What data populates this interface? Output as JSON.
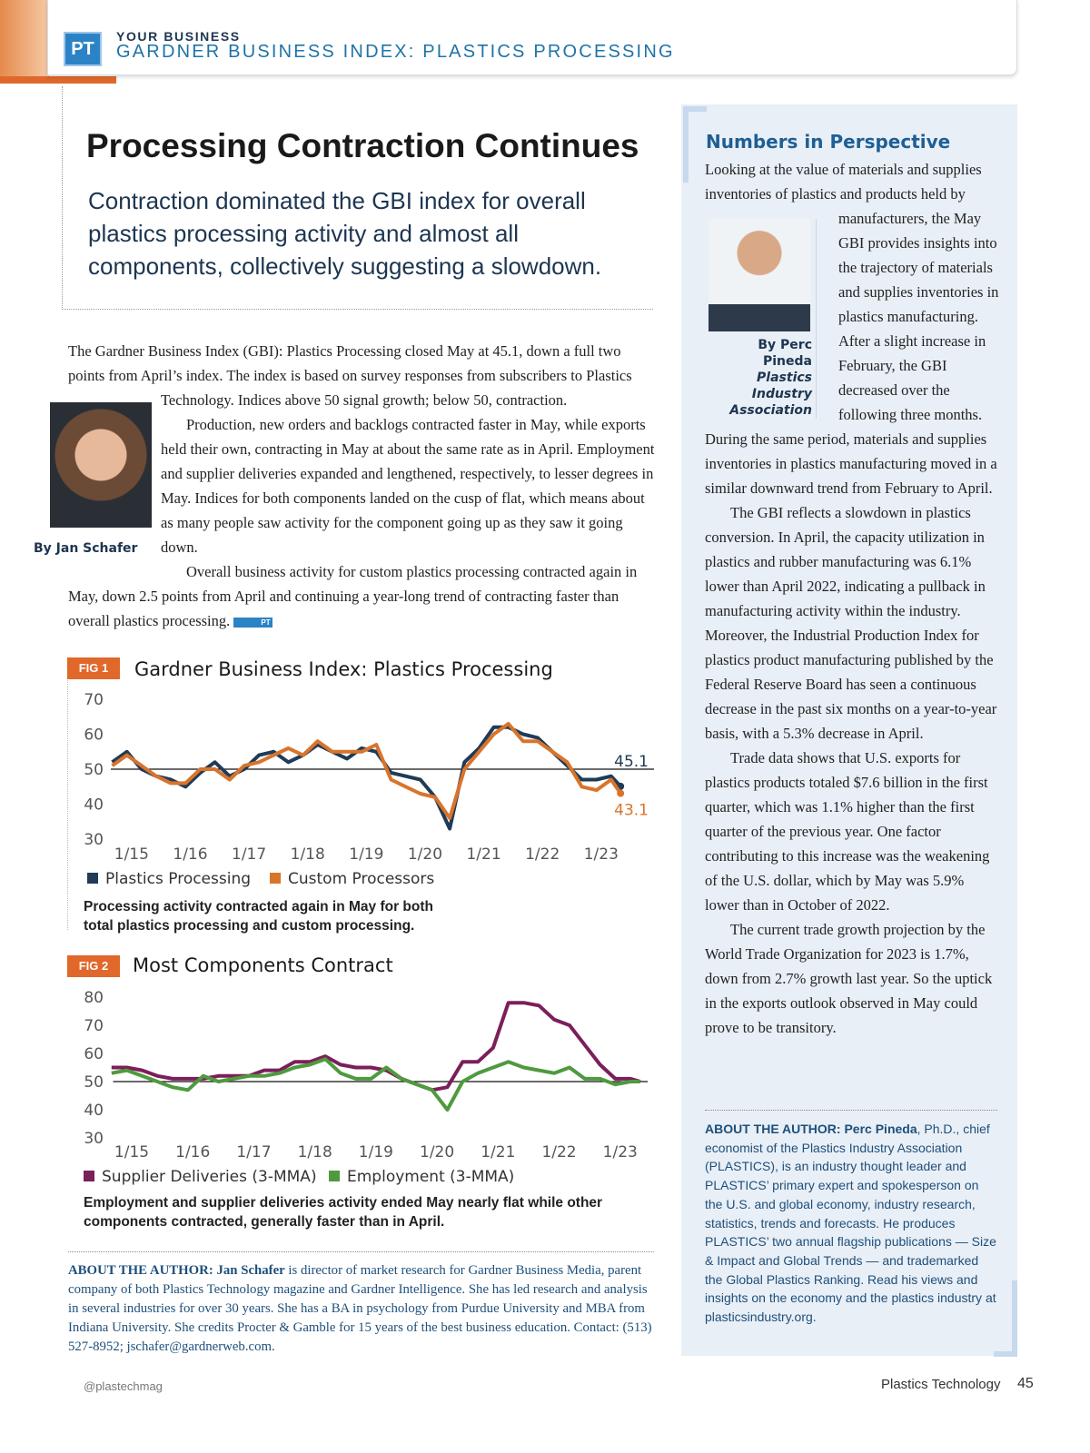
{
  "header": {
    "logo": "PT",
    "section": "YOUR BUSINESS",
    "title": "GARDNER BUSINESS INDEX: PLASTICS PROCESSING"
  },
  "article": {
    "title": "Processing Contraction Continues",
    "deck": "Contraction dominated the GBI index for overall plastics processing activity and almost all components, collectively suggesting a slowdown.",
    "byline": "By Jan Schafer",
    "paragraphs": [
      "The Gardner Business Index (GBI): Plastics Processing closed May at 45.1, down a full two points from April’s index. The index is based on survey responses from subscribers to Plastics Technology. Indices above 50 signal growth; below 50, contraction.",
      "Production, new orders and backlogs contracted faster in May, while exports held their own, contracting in May at about the same rate as in April. Employment and supplier deliveries expanded and lengthened, respectively, to lesser degrees in May. Indices for both components landed on the cusp of flat, which means about as many people saw activity for the component going up as they saw it going down.",
      "Overall business activity for custom plastics processing contracted again in May, down 2.5 points from April and continuing a year-long trend of contracting faster than overall plastics processing."
    ],
    "end_mark": "PT",
    "about": {
      "label": "ABOUT THE AUTHOR:",
      "name": "Jan Schafer",
      "text": "is director of market research for Gardner Business Media, parent company of both Plastics Technology magazine and Gardner Intelligence. She has led research and analysis in several industries for over 30 years. She has a BA in psychology from Purdue University and MBA from Indiana University. She credits Procter & Gamble for 15 years of the best business education. Contact: (513) 527-8952; jschafer@gardnerweb.com."
    }
  },
  "chart_data": [
    {
      "type": "line",
      "label": "FIG 1",
      "title": "Gardner Business Index: Plastics Processing",
      "caption": "Processing activity contracted again in May for both total plastics processing and custom processing.",
      "x": [
        2014.67,
        2014.92,
        2015.17,
        2015.42,
        2015.67,
        2015.92,
        2016.17,
        2016.42,
        2016.67,
        2016.92,
        2017.17,
        2017.42,
        2017.67,
        2017.92,
        2018.17,
        2018.42,
        2018.67,
        2018.92,
        2019.17,
        2019.42,
        2019.67,
        2019.92,
        2020.17,
        2020.42,
        2020.67,
        2020.92,
        2021.17,
        2021.42,
        2021.67,
        2021.92,
        2022.17,
        2022.42,
        2022.67,
        2022.92,
        2023.17,
        2023.33
      ],
      "xlim": [
        2014.6,
        2023.9
      ],
      "xticks": [
        {
          "value": 2015,
          "label": "1/15"
        },
        {
          "value": 2016,
          "label": "1/16"
        },
        {
          "value": 2017,
          "label": "1/17"
        },
        {
          "value": 2018,
          "label": "1/18"
        },
        {
          "value": 2019,
          "label": "1/19"
        },
        {
          "value": 2020,
          "label": "1/20"
        },
        {
          "value": 2021,
          "label": "1/21"
        },
        {
          "value": 2022,
          "label": "1/22"
        },
        {
          "value": 2023,
          "label": "1/23"
        }
      ],
      "ylim": [
        30,
        70
      ],
      "yticks": [
        30,
        40,
        50,
        60,
        70
      ],
      "reference_line": 50,
      "end_labels": true,
      "series": [
        {
          "name": "Plastics Processing",
          "color": "#1f3b57",
          "values": [
            52,
            55,
            50,
            48,
            47,
            45,
            49,
            52,
            48,
            50,
            54,
            55,
            52,
            54,
            57,
            55,
            53,
            56,
            55,
            49,
            48,
            47,
            42,
            33,
            52,
            56,
            62,
            62,
            60,
            59,
            55,
            51,
            47,
            47,
            48,
            45.1
          ]
        },
        {
          "name": "Custom Processors",
          "color": "#d9742b",
          "values": [
            51,
            54,
            51,
            48,
            46,
            46,
            50,
            50,
            47,
            51,
            52,
            54,
            56,
            54,
            58,
            55,
            55,
            55,
            57,
            47,
            45,
            43,
            42,
            36,
            50,
            55,
            60,
            63,
            58,
            58,
            55,
            52,
            45,
            44,
            47,
            43.1
          ]
        }
      ]
    },
    {
      "type": "line",
      "label": "FIG 2",
      "title": "Most Components Contract",
      "caption": "Employment and supplier deliveries activity ended May nearly flat while other components contracted, generally faster than in April.",
      "x": [
        2014.67,
        2014.92,
        2015.17,
        2015.42,
        2015.67,
        2015.92,
        2016.17,
        2016.42,
        2016.67,
        2016.92,
        2017.17,
        2017.42,
        2017.67,
        2017.92,
        2018.17,
        2018.42,
        2018.67,
        2018.92,
        2019.17,
        2019.42,
        2019.67,
        2019.92,
        2020.17,
        2020.42,
        2020.67,
        2020.92,
        2021.17,
        2021.42,
        2021.67,
        2021.92,
        2022.17,
        2022.42,
        2022.67,
        2022.92,
        2023.17,
        2023.33
      ],
      "xlim": [
        2014.65,
        2023.45
      ],
      "xticks": [
        {
          "value": 2015,
          "label": "1/15"
        },
        {
          "value": 2016,
          "label": "1/16"
        },
        {
          "value": 2017,
          "label": "1/17"
        },
        {
          "value": 2018,
          "label": "1/18"
        },
        {
          "value": 2019,
          "label": "1/19"
        },
        {
          "value": 2020,
          "label": "1/20"
        },
        {
          "value": 2021,
          "label": "1/21"
        },
        {
          "value": 2022,
          "label": "1/22"
        },
        {
          "value": 2023,
          "label": "1/23"
        }
      ],
      "ylim": [
        30,
        80
      ],
      "yticks": [
        30,
        40,
        50,
        60,
        70,
        80
      ],
      "reference_line": 50,
      "end_labels": false,
      "series": [
        {
          "name": "Supplier Deliveries (3-MMA)",
          "color": "#7b1f5a",
          "values": [
            55,
            55,
            54,
            52,
            51,
            51,
            51,
            52,
            52,
            52,
            54,
            54,
            57,
            57,
            59,
            56,
            55,
            55,
            54,
            51,
            49,
            47,
            48,
            57,
            57,
            62,
            78,
            78,
            77,
            72,
            70,
            63,
            56,
            51,
            51,
            50
          ]
        },
        {
          "name": "Employment (3-MMA)",
          "color": "#4f9a3e",
          "values": [
            53,
            54,
            52,
            50,
            48,
            47,
            52,
            50,
            51,
            52,
            52,
            53,
            55,
            56,
            58,
            53,
            51,
            51,
            55,
            51,
            49,
            47,
            40,
            50,
            53,
            55,
            57,
            55,
            54,
            53,
            55,
            51,
            51,
            49,
            50,
            50
          ]
        }
      ]
    }
  ],
  "sidebar": {
    "title": "Numbers in Perspective",
    "byline": "By Perc Pineda",
    "byline_org": "Plastics Industry Association",
    "paragraphs": [
      "Looking at the value of materials and supplies inventories of plastics and products held by manufacturers, the May GBI provides insights into the trajectory of materials and supplies inventories in plastics manufacturing. After a slight increase in February, the GBI decreased over the following three months. During the same period, materials and supplies inventories in plastics manufacturing moved in a similar downward trend from February to April.",
      "The GBI reflects a slowdown in plastics conversion. In April, the capacity utilization in plastics and rubber manufacturing was 6.1% lower than April 2022, indicating a pullback in manufacturing activity within the industry. Moreover, the Industrial Production Index for plastics product manufacturing published by the Federal Reserve Board has seen a continuous decrease in the past six months on a year-to-year basis, with a 5.3% decrease in April.",
      "Trade data shows that U.S. exports for plastics products totaled $7.6 billion in the first quarter, which was 1.1% higher than the first quarter of the previous year. One factor contributing to this increase was the weakening of the U.S. dollar, which by May was 5.9% lower than in October of 2022.",
      "The current trade growth projection by the World Trade Organization for 2023 is 1.7%, down from 2.7% growth last year. So the uptick in the exports outlook observed in May could prove to be transitory."
    ],
    "about": {
      "label": "ABOUT THE AUTHOR:",
      "name": "Perc Pineda",
      "text": ", Ph.D., chief economist of the Plastics Industry Association (PLASTICS), is an industry thought leader and PLASTICS’ primary expert and spokesperson on the U.S. and global economy, industry research, statistics, trends and forecasts. He produces PLASTICS’ two annual flagship publications — Size & Impact and Global Trends — and trademarked the Global Plastics Ranking. Read his views and insights on the economy and the plastics industry at plasticsindustry.org."
    }
  },
  "footer": {
    "handle": "@plastechmag",
    "magazine": "Plastics Technology",
    "page": "45"
  }
}
